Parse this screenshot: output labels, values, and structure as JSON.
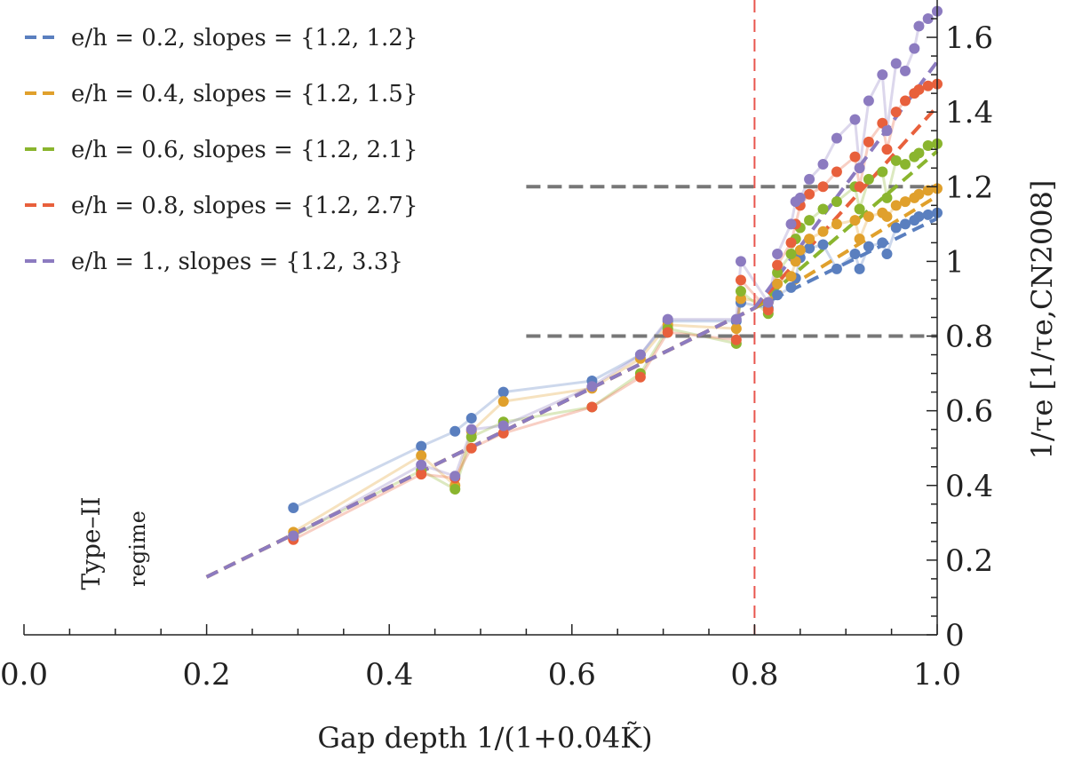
{
  "chart_data": {
    "type": "line",
    "xlabel": "Gap depth 1/(1+0.04K̃)",
    "ylabel": "1/τe [1/τe,CN2008]",
    "xlim": [
      0.0,
      1.0
    ],
    "ylim": [
      0.0,
      1.7
    ],
    "x_ticks": [
      "0.0",
      "0.2",
      "0.4",
      "0.6",
      "0.8",
      "1.0"
    ],
    "y_ticks": [
      "0",
      "0.2",
      "0.4",
      "0.6",
      "0.8",
      "1",
      "1.2",
      "1.4",
      "1.6"
    ],
    "annotations": {
      "regime_line1": "Type–II",
      "regime_line2": "regime"
    },
    "vline_x": 0.8,
    "hlines": [
      {
        "y": 1.2,
        "x_from": 0.55
      },
      {
        "y": 0.8,
        "x_from": 0.55
      }
    ],
    "colors": {
      "blue": "#5a7fbf",
      "orange": "#e0a02c",
      "green": "#8ab52e",
      "red": "#e8603c",
      "purple": "#8c7bc0",
      "gray": "#777777",
      "vline": "#e8554e"
    },
    "legend": [
      {
        "label": "e/h = 0.2, slopes = {1.2, 1.2}",
        "color": "#5a7fbf"
      },
      {
        "label": "e/h = 0.4, slopes = {1.2, 1.5}",
        "color": "#e0a02c"
      },
      {
        "label": "e/h = 0.6, slopes = {1.2, 2.1}",
        "color": "#8ab52e"
      },
      {
        "label": "e/h = 0.8, slopes = {1.2, 2.7}",
        "color": "#e8603c"
      },
      {
        "label": "e/h = 1., slopes = {1.2, 3.3}",
        "color": "#8c7bc0"
      }
    ],
    "fits": [
      {
        "name": "e/h = 0.2",
        "color": "#5a7fbf",
        "segments": [
          [
            [
              0.2,
              0.155
            ],
            [
              0.8,
              0.875
            ]
          ],
          [
            [
              0.8,
              0.875
            ],
            [
              1.0,
              1.115
            ]
          ]
        ]
      },
      {
        "name": "e/h = 0.4",
        "color": "#e0a02c",
        "segments": [
          [
            [
              0.2,
              0.155
            ],
            [
              0.8,
              0.875
            ]
          ],
          [
            [
              0.8,
              0.875
            ],
            [
              1.0,
              1.175
            ]
          ]
        ]
      },
      {
        "name": "e/h = 0.6",
        "color": "#8ab52e",
        "segments": [
          [
            [
              0.2,
              0.155
            ],
            [
              0.8,
              0.875
            ]
          ],
          [
            [
              0.8,
              0.875
            ],
            [
              1.0,
              1.295
            ]
          ]
        ]
      },
      {
        "name": "e/h = 0.8",
        "color": "#e8603c",
        "segments": [
          [
            [
              0.2,
              0.155
            ],
            [
              0.8,
              0.875
            ]
          ],
          [
            [
              0.8,
              0.875
            ],
            [
              1.0,
              1.415
            ]
          ]
        ]
      },
      {
        "name": "e/h = 1.",
        "color": "#8c7bc0",
        "segments": [
          [
            [
              0.2,
              0.155
            ],
            [
              0.8,
              0.875
            ]
          ],
          [
            [
              0.8,
              0.875
            ],
            [
              1.0,
              1.535
            ]
          ]
        ]
      }
    ],
    "series": [
      {
        "name": "e/h = 0.2",
        "color": "#5a7fbf",
        "points": [
          [
            0.295,
            0.34
          ],
          [
            0.435,
            0.505
          ],
          [
            0.472,
            0.545
          ],
          [
            0.49,
            0.58
          ],
          [
            0.525,
            0.65
          ],
          [
            0.622,
            0.68
          ],
          [
            0.675,
            0.75
          ],
          [
            0.705,
            0.84
          ],
          [
            0.78,
            0.84
          ],
          [
            0.785,
            0.89
          ],
          [
            0.815,
            0.875
          ],
          [
            0.825,
            0.91
          ],
          [
            0.84,
            0.93
          ],
          [
            0.845,
            0.955
          ],
          [
            0.85,
            1.01
          ],
          [
            0.86,
            1.035
          ],
          [
            0.875,
            1.045
          ],
          [
            0.89,
            0.98
          ],
          [
            0.91,
            1.02
          ],
          [
            0.915,
            0.98
          ],
          [
            0.925,
            1.04
          ],
          [
            0.94,
            1.05
          ],
          [
            0.945,
            1.02
          ],
          [
            0.955,
            1.09
          ],
          [
            0.965,
            1.1
          ],
          [
            0.975,
            1.11
          ],
          [
            0.98,
            1.12
          ],
          [
            0.99,
            1.125
          ],
          [
            1.0,
            1.13
          ]
        ]
      },
      {
        "name": "e/h = 0.4",
        "color": "#e0a02c",
        "points": [
          [
            0.295,
            0.275
          ],
          [
            0.435,
            0.48
          ],
          [
            0.472,
            0.4
          ],
          [
            0.49,
            0.545
          ],
          [
            0.525,
            0.625
          ],
          [
            0.622,
            0.66
          ],
          [
            0.675,
            0.74
          ],
          [
            0.705,
            0.83
          ],
          [
            0.78,
            0.82
          ],
          [
            0.785,
            0.9
          ],
          [
            0.815,
            0.89
          ],
          [
            0.825,
            0.94
          ],
          [
            0.84,
            0.96
          ],
          [
            0.845,
            1.0
          ],
          [
            0.85,
            1.03
          ],
          [
            0.86,
            1.06
          ],
          [
            0.875,
            1.08
          ],
          [
            0.89,
            1.1
          ],
          [
            0.91,
            1.11
          ],
          [
            0.915,
            1.06
          ],
          [
            0.925,
            1.12
          ],
          [
            0.94,
            1.13
          ],
          [
            0.945,
            1.12
          ],
          [
            0.955,
            1.15
          ],
          [
            0.965,
            1.16
          ],
          [
            0.975,
            1.17
          ],
          [
            0.98,
            1.18
          ],
          [
            0.99,
            1.19
          ],
          [
            1.0,
            1.195
          ]
        ]
      },
      {
        "name": "e/h = 0.6",
        "color": "#8ab52e",
        "points": [
          [
            0.295,
            0.265
          ],
          [
            0.435,
            0.44
          ],
          [
            0.472,
            0.39
          ],
          [
            0.49,
            0.53
          ],
          [
            0.525,
            0.57
          ],
          [
            0.622,
            0.61
          ],
          [
            0.675,
            0.7
          ],
          [
            0.705,
            0.82
          ],
          [
            0.78,
            0.78
          ],
          [
            0.785,
            0.92
          ],
          [
            0.815,
            0.86
          ],
          [
            0.825,
            0.97
          ],
          [
            0.84,
            1.02
          ],
          [
            0.845,
            1.06
          ],
          [
            0.85,
            1.09
          ],
          [
            0.86,
            1.11
          ],
          [
            0.875,
            1.14
          ],
          [
            0.89,
            1.16
          ],
          [
            0.91,
            1.2
          ],
          [
            0.915,
            1.14
          ],
          [
            0.925,
            1.22
          ],
          [
            0.94,
            1.24
          ],
          [
            0.945,
            1.17
          ],
          [
            0.955,
            1.27
          ],
          [
            0.965,
            1.26
          ],
          [
            0.975,
            1.28
          ],
          [
            0.98,
            1.29
          ],
          [
            0.99,
            1.31
          ],
          [
            1.0,
            1.315
          ]
        ]
      },
      {
        "name": "e/h = 0.8",
        "color": "#e8603c",
        "points": [
          [
            0.295,
            0.255
          ],
          [
            0.435,
            0.43
          ],
          [
            0.472,
            0.42
          ],
          [
            0.49,
            0.5
          ],
          [
            0.525,
            0.54
          ],
          [
            0.622,
            0.61
          ],
          [
            0.675,
            0.69
          ],
          [
            0.705,
            0.81
          ],
          [
            0.78,
            0.79
          ],
          [
            0.785,
            0.95
          ],
          [
            0.815,
            0.87
          ],
          [
            0.825,
            0.99
          ],
          [
            0.84,
            1.05
          ],
          [
            0.845,
            1.1
          ],
          [
            0.85,
            1.15
          ],
          [
            0.86,
            1.18
          ],
          [
            0.875,
            1.2
          ],
          [
            0.89,
            1.24
          ],
          [
            0.91,
            1.28
          ],
          [
            0.915,
            1.2
          ],
          [
            0.925,
            1.32
          ],
          [
            0.94,
            1.37
          ],
          [
            0.945,
            1.3
          ],
          [
            0.955,
            1.4
          ],
          [
            0.965,
            1.43
          ],
          [
            0.975,
            1.45
          ],
          [
            0.98,
            1.46
          ],
          [
            0.99,
            1.47
          ],
          [
            1.0,
            1.475
          ]
        ]
      },
      {
        "name": "e/h = 1.",
        "color": "#8c7bc0",
        "points": [
          [
            0.295,
            0.265
          ],
          [
            0.435,
            0.455
          ],
          [
            0.472,
            0.425
          ],
          [
            0.49,
            0.55
          ],
          [
            0.525,
            0.56
          ],
          [
            0.622,
            0.665
          ],
          [
            0.675,
            0.75
          ],
          [
            0.705,
            0.845
          ],
          [
            0.78,
            0.845
          ],
          [
            0.785,
            1.0
          ],
          [
            0.815,
            0.89
          ],
          [
            0.825,
            1.02
          ],
          [
            0.84,
            1.1
          ],
          [
            0.845,
            1.16
          ],
          [
            0.85,
            1.17
          ],
          [
            0.86,
            1.22
          ],
          [
            0.875,
            1.26
          ],
          [
            0.89,
            1.33
          ],
          [
            0.91,
            1.38
          ],
          [
            0.915,
            1.25
          ],
          [
            0.925,
            1.43
          ],
          [
            0.94,
            1.5
          ],
          [
            0.945,
            1.35
          ],
          [
            0.955,
            1.53
          ],
          [
            0.965,
            1.51
          ],
          [
            0.975,
            1.57
          ],
          [
            0.98,
            1.63
          ],
          [
            0.99,
            1.65
          ],
          [
            1.0,
            1.67
          ]
        ]
      }
    ]
  }
}
